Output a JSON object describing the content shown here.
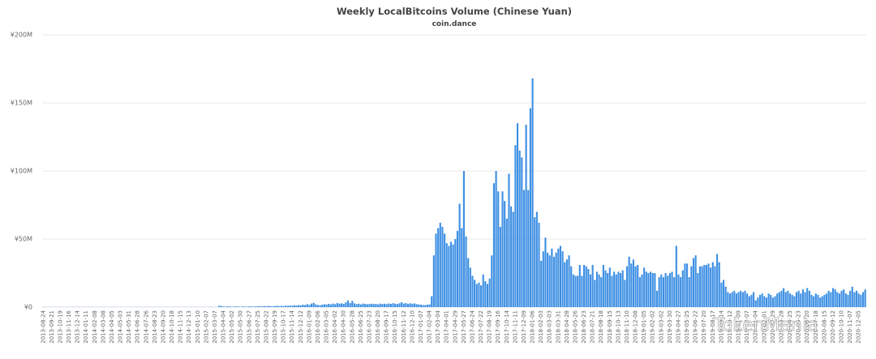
{
  "chart_data": {
    "type": "bar",
    "title": "Weekly LocalBitcoins Volume (Chinese Yuan)",
    "subtitle": "coin.dance",
    "watermark": "TokenMania",
    "color": "#3d8fe3",
    "grid": true,
    "ylim": [
      0,
      200000000
    ],
    "yticks": [
      {
        "value": 0,
        "label": "¥0"
      },
      {
        "value": 50000000,
        "label": "¥50M"
      },
      {
        "value": 100000000,
        "label": "¥100M"
      },
      {
        "value": 150000000,
        "label": "¥150M"
      },
      {
        "value": 200000000,
        "label": "¥200M"
      }
    ],
    "categories": [
      "2013-08-24",
      null,
      null,
      null,
      "2013-09-21",
      null,
      null,
      null,
      "2013-10-19",
      null,
      null,
      null,
      "2013-11-16",
      null,
      null,
      null,
      "2013-12-14",
      null,
      null,
      null,
      "2014-01-11",
      null,
      null,
      null,
      "2014-02-08",
      null,
      null,
      null,
      "2014-03-08",
      null,
      null,
      null,
      "2014-04-05",
      null,
      null,
      null,
      "2014-05-03",
      null,
      null,
      null,
      "2014-05-31",
      null,
      null,
      null,
      "2014-06-28",
      null,
      null,
      null,
      "2014-07-26",
      null,
      null,
      null,
      "2014-08-23",
      null,
      null,
      null,
      "2014-09-20",
      null,
      null,
      null,
      "2014-10-18",
      null,
      null,
      null,
      "2014-11-15",
      null,
      null,
      null,
      "2014-12-13",
      null,
      null,
      null,
      "2015-01-10",
      null,
      null,
      null,
      "2015-02-07",
      null,
      null,
      null,
      "2015-03-07",
      null,
      null,
      null,
      "2015-04-04",
      null,
      null,
      null,
      "2015-05-02",
      null,
      null,
      null,
      "2015-05-30",
      null,
      null,
      null,
      "2015-06-27",
      null,
      null,
      null,
      "2015-07-25",
      null,
      null,
      null,
      "2015-08-22",
      null,
      null,
      null,
      "2015-09-19",
      null,
      null,
      null,
      "2015-10-17",
      null,
      null,
      null,
      "2015-11-14",
      null,
      null,
      null,
      "2015-12-12",
      null,
      null,
      null,
      "2016-01-09",
      null,
      null,
      null,
      "2016-02-06",
      null,
      null,
      null,
      "2016-03-05",
      null,
      null,
      null,
      "2016-04-02",
      null,
      null,
      null,
      "2016-04-30",
      null,
      null,
      null,
      "2016-05-28",
      null,
      null,
      null,
      "2016-06-25",
      null,
      null,
      null,
      "2016-07-23",
      null,
      null,
      null,
      "2016-08-20",
      null,
      null,
      null,
      "2016-09-17",
      null,
      null,
      null,
      "2016-10-15",
      null,
      null,
      null,
      "2016-11-12",
      null,
      null,
      null,
      "2016-12-10",
      null,
      null,
      null,
      "2017-01-07",
      null,
      null,
      null,
      "2017-02-04",
      null,
      null,
      null,
      "2017-03-04",
      null,
      null,
      null,
      "2017-04-01",
      null,
      null,
      null,
      "2017-04-29",
      null,
      null,
      null,
      "2017-05-27",
      null,
      null,
      null,
      "2017-06-24",
      null,
      null,
      null,
      "2017-07-22",
      null,
      null,
      null,
      "2017-08-19",
      null,
      null,
      null,
      "2017-09-16",
      null,
      null,
      null,
      "2017-10-14",
      null,
      null,
      null,
      "2017-11-11",
      null,
      null,
      null,
      "2017-12-09",
      null,
      null,
      null,
      "2018-01-06",
      null,
      null,
      null,
      "2018-02-03",
      null,
      null,
      null,
      "2018-03-03",
      null,
      null,
      null,
      "2018-03-31",
      null,
      null,
      null,
      "2018-04-28",
      null,
      null,
      null,
      "2018-05-26",
      null,
      null,
      null,
      "2018-06-23",
      null,
      null,
      null,
      "2018-07-21",
      null,
      null,
      null,
      "2018-08-18",
      null,
      null,
      null,
      "2018-09-15",
      null,
      null,
      null,
      "2018-10-13",
      null,
      null,
      null,
      "2018-11-10",
      null,
      null,
      null,
      "2018-12-08",
      null,
      null,
      null,
      "2019-01-05",
      null,
      null,
      null,
      "2019-02-02",
      null,
      null,
      null,
      "2019-03-02",
      null,
      null,
      null,
      "2019-03-30",
      null,
      null,
      null,
      "2019-04-27",
      null,
      null,
      null,
      "2019-05-25",
      null,
      null,
      null,
      "2019-06-22",
      null,
      null,
      null,
      "2019-07-20",
      null,
      null,
      null,
      "2019-08-17",
      null,
      null,
      null,
      "2019-09-14",
      null,
      null,
      null,
      "2019-10-12",
      null,
      null,
      null,
      "2019-11-09",
      null,
      null,
      null,
      "2019-12-07",
      null,
      null,
      null,
      "2020-01-04",
      null,
      null,
      null,
      "2020-02-01",
      null,
      null,
      null,
      "2020-02-29",
      null,
      null,
      null,
      "2020-03-28",
      null,
      null,
      null,
      "2020-04-25",
      null,
      null,
      null,
      "2020-05-23",
      null,
      null,
      null,
      "2020-06-20",
      null,
      null,
      null,
      "2020-07-18",
      null,
      null,
      null,
      "2020-08-15",
      null,
      null,
      null,
      "2020-09-12",
      null,
      null,
      null,
      "2020-10-10",
      null,
      null,
      null,
      "2020-11-07",
      null,
      null,
      null,
      "2020-12-05",
      null,
      null,
      null
    ],
    "values": [
      100000.0,
      100000.0,
      100000.0,
      100000.0,
      100000.0,
      100000.0,
      100000.0,
      100000.0,
      100000.0,
      100000.0,
      100000.0,
      100000.0,
      100000.0,
      100000.0,
      100000.0,
      100000.0,
      100000.0,
      100000.0,
      100000.0,
      100000.0,
      100000.0,
      100000.0,
      100000.0,
      100000.0,
      100000.0,
      100000.0,
      100000.0,
      100000.0,
      100000.0,
      100000.0,
      100000.0,
      100000.0,
      100000.0,
      100000.0,
      100000.0,
      100000.0,
      100000.0,
      100000.0,
      100000.0,
      100000.0,
      100000.0,
      100000.0,
      100000.0,
      100000.0,
      100000.0,
      100000.0,
      100000.0,
      100000.0,
      100000.0,
      100000.0,
      100000.0,
      100000.0,
      100000.0,
      100000.0,
      100000.0,
      100000.0,
      100000.0,
      100000.0,
      100000.0,
      100000.0,
      100000.0,
      100000.0,
      100000.0,
      100000.0,
      100000.0,
      100000.0,
      100000.0,
      100000.0,
      100000.0,
      100000.0,
      100000.0,
      100000.0,
      100000.0,
      100000.0,
      100000.0,
      100000.0,
      100000.0,
      100000.0,
      100000.0,
      100000.0,
      100000.0,
      100000.0,
      1000000.0,
      800000.0,
      500000.0,
      400000.0,
      600000.0,
      500000.0,
      300000.0,
      400000.0,
      500000.0,
      400000.0,
      300000.0,
      500000.0,
      400000.0,
      300000.0,
      600000.0,
      500000.0,
      400000.0,
      500000.0,
      600000.0,
      700000.0,
      500000.0,
      800000.0,
      600000.0,
      900000.0,
      700000.0,
      600000.0,
      800000.0,
      1000000.0,
      700000.0,
      900000.0,
      800000.0,
      1100000.0,
      900000.0,
      1200000.0,
      1000000.0,
      1400000.0,
      1200000.0,
      1500000.0,
      1300000.0,
      1800000.0,
      1500000.0,
      2200000.0,
      1700000.0,
      2600000.0,
      3200000.0,
      2000000.0,
      1600000.0,
      1400000.0,
      1800000.0,
      2100000.0,
      1900000.0,
      2400000.0,
      2000000.0,
      2600000.0,
      2200000.0,
      3000000.0,
      2500000.0,
      2800000.0,
      2400000.0,
      3500000.0,
      5000000.0,
      3000000.0,
      4600000.0,
      2800000.0,
      2200000.0,
      2500000.0,
      2000000.0,
      2600000.0,
      2400000.0,
      2100000.0,
      2300000.0,
      2500000.0,
      2200000.0,
      2400000.0,
      2000000.0,
      2600000.0,
      2300000.0,
      2500000.0,
      2200000.0,
      2700000.0,
      2400000.0,
      2900000.0,
      2500000.0,
      2300000.0,
      2800000.0,
      3600000.0,
      2600000.0,
      3000000.0,
      2400000.0,
      2800000.0,
      2500000.0,
      2700000.0,
      2200000.0,
      2000000.0,
      1800000.0,
      1600000.0,
      1500000.0,
      1800000.0,
      2000000.0,
      8000000.0,
      38000000.0,
      54000000.0,
      58000000.0,
      62000000.0,
      59000000.0,
      54000000.0,
      47000000.0,
      45000000.0,
      48000000.0,
      46000000.0,
      50000000.0,
      56000000.0,
      76000000.0,
      58000000.0,
      100000000.0,
      52000000.0,
      36000000.0,
      29000000.0,
      23000000.0,
      20000000.0,
      17000000.0,
      18000000.0,
      16000000.0,
      24000000.0,
      19000000.0,
      17000000.0,
      21000000.0,
      38000000.0,
      91000000.0,
      100000000.0,
      85000000.0,
      59000000.0,
      85000000.0,
      78000000.0,
      65000000.0,
      98000000.0,
      74000000.0,
      70000000.0,
      119000000.0,
      135000000.0,
      115000000.0,
      110000000.0,
      86000000.0,
      134000000.0,
      86000000.0,
      146000000.0,
      168000000.0,
      66000000.0,
      70000000.0,
      62000000.0,
      34000000.0,
      41000000.0,
      51000000.0,
      40000000.0,
      38000000.0,
      43000000.0,
      37000000.0,
      40000000.0,
      43000000.0,
      45000000.0,
      41000000.0,
      33000000.0,
      35000000.0,
      38000000.0,
      30000000.0,
      24000000.0,
      23000000.0,
      23000000.0,
      31000000.0,
      23000000.0,
      31000000.0,
      30000000.0,
      28000000.0,
      24000000.0,
      31000000.0,
      20000000.0,
      26000000.0,
      24000000.0,
      22000000.0,
      31000000.0,
      27000000.0,
      25000000.0,
      29000000.0,
      23000000.0,
      26000000.0,
      24000000.0,
      26000000.0,
      25000000.0,
      27000000.0,
      20000000.0,
      30000000.0,
      37000000.0,
      32000000.0,
      35000000.0,
      30000000.0,
      31000000.0,
      22000000.0,
      24000000.0,
      29000000.0,
      26000000.0,
      25000000.0,
      26000000.0,
      25000000.0,
      25000000.0,
      12000000.0,
      22000000.0,
      24000000.0,
      22000000.0,
      25000000.0,
      23000000.0,
      25000000.0,
      26000000.0,
      22000000.0,
      45000000.0,
      24000000.0,
      22000000.0,
      27000000.0,
      32000000.0,
      32000000.0,
      22000000.0,
      30000000.0,
      36000000.0,
      38000000.0,
      25000000.0,
      30000000.0,
      30000000.0,
      31000000.0,
      31000000.0,
      32000000.0,
      29000000.0,
      33000000.0,
      30000000.0,
      39000000.0,
      33000000.0,
      18000000.0,
      20000000.0,
      15000000.0,
      11000000.0,
      10000000.0,
      11000000.0,
      12000000.0,
      10000000.0,
      11000000.0,
      12000000.0,
      11000000.0,
      12000000.0,
      10000000.0,
      8000000.0,
      9000000.0,
      11000000.0,
      5000000.0,
      7000000.0,
      9000000.0,
      10000000.0,
      8000000.0,
      7000000.0,
      10000000.0,
      9000000.0,
      7000000.0,
      8000000.0,
      10000000.0,
      11000000.0,
      12000000.0,
      14000000.0,
      11000000.0,
      12000000.0,
      10000000.0,
      9000000.0,
      8000000.0,
      11000000.0,
      12000000.0,
      10000000.0,
      13000000.0,
      11000000.0,
      14000000.0,
      12000000.0,
      9000000.0,
      8000000.0,
      10000000.0,
      9000000.0,
      7000000.0,
      8000000.0,
      9000000.0,
      10000000.0,
      12000000.0,
      11000000.0,
      14000000.0,
      13000000.0,
      11000000.0,
      10000000.0,
      12000000.0,
      13000000.0,
      10000000.0,
      9000000.0,
      12000000.0,
      15000000.0,
      11000000.0,
      12000000.0,
      10000000.0,
      9000000.0,
      11000000.0,
      13000000.0
    ]
  }
}
